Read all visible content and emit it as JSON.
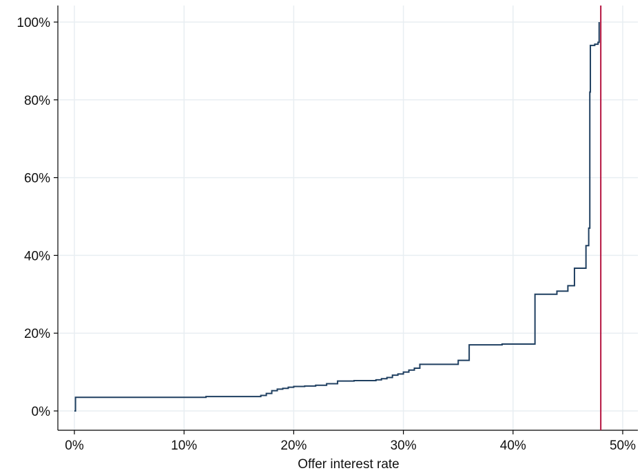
{
  "chart_data": {
    "type": "line",
    "title": "",
    "xlabel": "Offer interest rate",
    "ylabel": "",
    "xlim": [
      0,
      0.5
    ],
    "ylim": [
      0,
      1
    ],
    "grid": true,
    "x_ticks": [
      0,
      0.1,
      0.2,
      0.3,
      0.4,
      0.5
    ],
    "x_tick_labels": [
      "0%",
      "10%",
      "20%",
      "30%",
      "40%",
      "50%"
    ],
    "y_ticks": [
      0,
      0.2,
      0.4,
      0.6,
      0.8,
      1.0
    ],
    "y_tick_labels": [
      "0%",
      "20%",
      "40%",
      "60%",
      "80%",
      "100%"
    ],
    "series": [
      {
        "step": true,
        "color": "#1f3f60",
        "x": [
          0,
          0.001,
          0.12,
          0.17,
          0.175,
          0.18,
          0.185,
          0.19,
          0.195,
          0.2,
          0.21,
          0.22,
          0.23,
          0.24,
          0.255,
          0.275,
          0.28,
          0.285,
          0.29,
          0.295,
          0.3,
          0.305,
          0.31,
          0.315,
          0.35,
          0.36,
          0.39,
          0.42,
          0.44,
          0.45,
          0.456,
          0.4665,
          0.469,
          0.47,
          0.4705,
          0.4745,
          0.4775,
          0.4785
        ],
        "y": [
          0,
          0.035,
          0.037,
          0.04,
          0.045,
          0.052,
          0.056,
          0.058,
          0.061,
          0.063,
          0.064,
          0.066,
          0.07,
          0.077,
          0.078,
          0.08,
          0.083,
          0.086,
          0.092,
          0.095,
          0.1,
          0.105,
          0.11,
          0.12,
          0.13,
          0.17,
          0.172,
          0.3,
          0.308,
          0.322,
          0.367,
          0.425,
          0.47,
          0.82,
          0.94,
          0.943,
          0.948,
          1.0
        ]
      }
    ],
    "reference_lines": [
      {
        "axis": "x",
        "value": 0.48,
        "color": "#b5123e"
      }
    ]
  }
}
